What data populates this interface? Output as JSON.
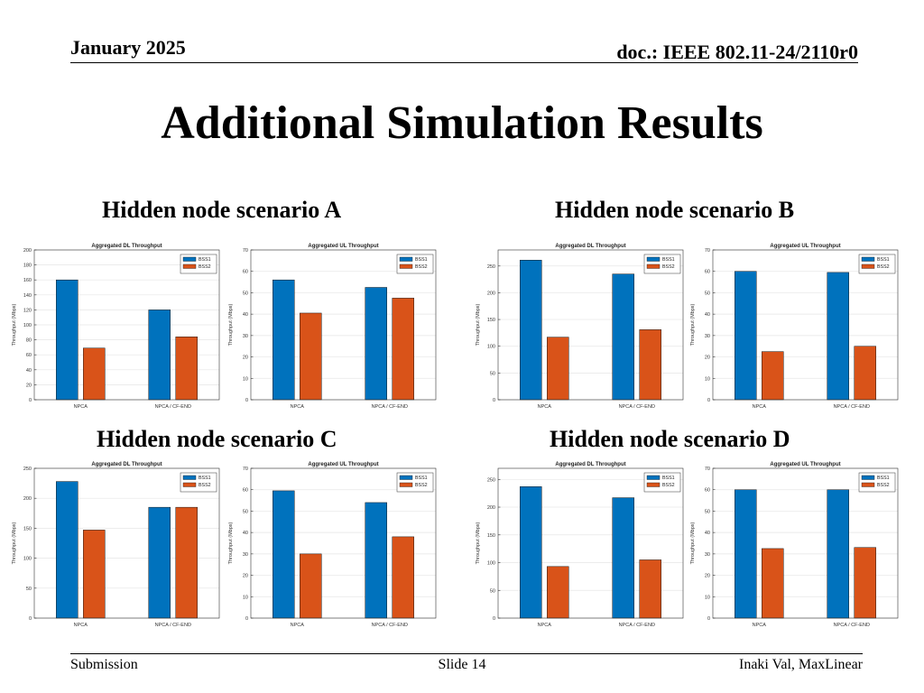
{
  "header": {
    "date": "January 2025",
    "doc": "doc.: IEEE 802.11-24/2110r0"
  },
  "title": "Additional Simulation Results",
  "scenarios": [
    {
      "label": "Hidden node scenario A"
    },
    {
      "label": "Hidden node scenario B"
    },
    {
      "label": "Hidden node scenario C"
    },
    {
      "label": "Hidden node scenario D"
    }
  ],
  "footer": {
    "left": "Submission",
    "center": "Slide 14",
    "right": "Inaki Val, MaxLinear"
  },
  "colors": {
    "bss1": "#0072BD",
    "bss2": "#D95319"
  },
  "chart_data": [
    {
      "type": "bar",
      "title": "Aggregated DL Throughput",
      "ylabel": "Throughput (Mbps)",
      "categories": [
        "NPCA",
        "NPCA / CF-END"
      ],
      "ylim": [
        0,
        200
      ],
      "yticks": [
        0,
        20,
        40,
        60,
        80,
        100,
        120,
        140,
        160,
        180,
        200
      ],
      "legend": "top-right",
      "grid": true,
      "series": [
        {
          "name": "BSS1",
          "values": [
            160,
            120
          ]
        },
        {
          "name": "BSS2",
          "values": [
            69,
            84
          ]
        }
      ]
    },
    {
      "type": "bar",
      "title": "Aggregated UL Throughput",
      "ylabel": "Throughput (Mbps)",
      "categories": [
        "NPCA",
        "NPCA / CF-END"
      ],
      "ylim": [
        0,
        70
      ],
      "yticks": [
        0,
        10,
        20,
        30,
        40,
        50,
        60,
        70
      ],
      "legend": "top-right",
      "grid": true,
      "series": [
        {
          "name": "BSS1",
          "values": [
            56,
            52.5
          ]
        },
        {
          "name": "BSS2",
          "values": [
            40.5,
            47.5
          ]
        }
      ]
    },
    {
      "type": "bar",
      "title": "Aggregated DL Throughput",
      "ylabel": "Throughput (Mbps)",
      "categories": [
        "NPCA",
        "NPCA / CF-END"
      ],
      "ylim": [
        0,
        280
      ],
      "yticks": [
        0,
        50,
        100,
        150,
        200,
        250
      ],
      "legend": "top-right",
      "grid": true,
      "series": [
        {
          "name": "BSS1",
          "values": [
            261,
            235
          ]
        },
        {
          "name": "BSS2",
          "values": [
            117,
            131
          ]
        }
      ]
    },
    {
      "type": "bar",
      "title": "Aggregated UL Throughput",
      "ylabel": "Throughput (Mbps)",
      "categories": [
        "NPCA",
        "NPCA / CF-END"
      ],
      "ylim": [
        0,
        70
      ],
      "yticks": [
        0,
        10,
        20,
        30,
        40,
        50,
        60,
        70
      ],
      "legend": "top-right",
      "grid": true,
      "series": [
        {
          "name": "BSS1",
          "values": [
            60,
            59.5
          ]
        },
        {
          "name": "BSS2",
          "values": [
            22.5,
            25
          ]
        }
      ]
    },
    {
      "type": "bar",
      "title": "Aggregated DL Throughput",
      "ylabel": "Throughput (Mbps)",
      "categories": [
        "NPCA",
        "NPCA / CF-END"
      ],
      "ylim": [
        0,
        250
      ],
      "yticks": [
        0,
        50,
        100,
        150,
        200,
        250
      ],
      "legend": "top-right",
      "grid": true,
      "series": [
        {
          "name": "BSS1",
          "values": [
            228,
            185
          ]
        },
        {
          "name": "BSS2",
          "values": [
            147,
            185
          ]
        }
      ]
    },
    {
      "type": "bar",
      "title": "Aggregated UL Throughput",
      "ylabel": "Throughput (Mbps)",
      "categories": [
        "NPCA",
        "NPCA / CF-END"
      ],
      "ylim": [
        0,
        70
      ],
      "yticks": [
        0,
        10,
        20,
        30,
        40,
        50,
        60,
        70
      ],
      "legend": "top-right",
      "grid": true,
      "series": [
        {
          "name": "BSS1",
          "values": [
            59.5,
            54
          ]
        },
        {
          "name": "BSS2",
          "values": [
            30,
            38
          ]
        }
      ]
    },
    {
      "type": "bar",
      "title": "Aggregated DL Throughput",
      "ylabel": "Throughput (Mbps)",
      "categories": [
        "NPCA",
        "NPCA / CF-END"
      ],
      "ylim": [
        0,
        270
      ],
      "yticks": [
        0,
        50,
        100,
        150,
        200,
        250
      ],
      "legend": "top-right",
      "grid": true,
      "series": [
        {
          "name": "BSS1",
          "values": [
            237,
            217
          ]
        },
        {
          "name": "BSS2",
          "values": [
            93,
            105
          ]
        }
      ]
    },
    {
      "type": "bar",
      "title": "Aggregated UL Throughput",
      "ylabel": "Throughput (Mbps)",
      "categories": [
        "NPCA",
        "NPCA / CF-END"
      ],
      "ylim": [
        0,
        70
      ],
      "yticks": [
        0,
        10,
        20,
        30,
        40,
        50,
        60,
        70
      ],
      "legend": "top-right",
      "grid": true,
      "series": [
        {
          "name": "BSS1",
          "values": [
            60,
            60
          ]
        },
        {
          "name": "BSS2",
          "values": [
            32.5,
            33
          ]
        }
      ]
    }
  ]
}
